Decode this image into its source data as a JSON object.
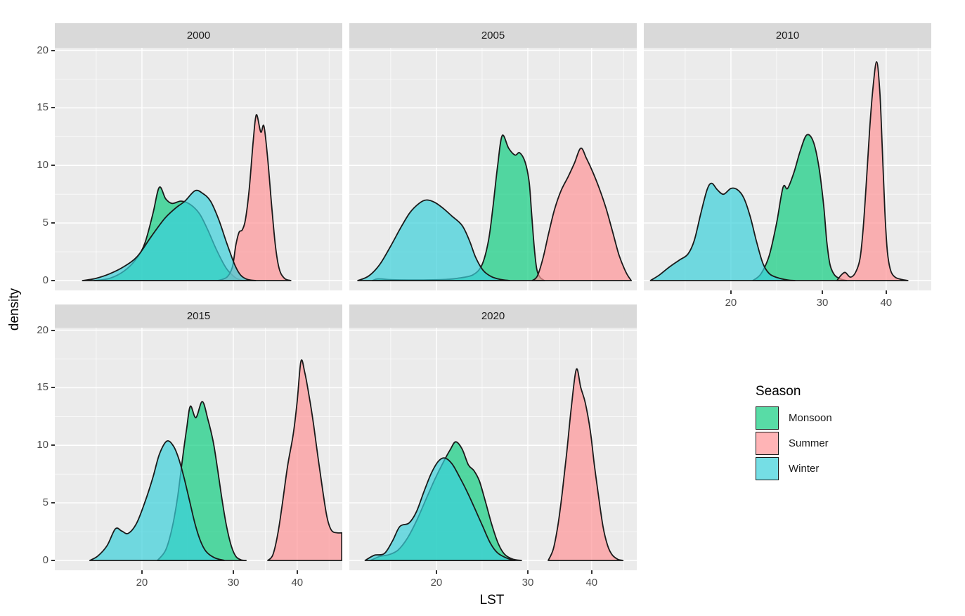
{
  "figure": {
    "background": "#FFFFFF"
  },
  "axes": {
    "x_title": "LST",
    "y_title": "density",
    "x_tick_labels": [
      "20",
      "30",
      "40"
    ],
    "y_tick_labels": [
      "0",
      "5",
      "10",
      "15",
      "20"
    ]
  },
  "legend": {
    "title": "Season",
    "items": [
      {
        "label": "Monsoon",
        "color": "#10CD80"
      },
      {
        "label": "Summer",
        "color": "#FF9497"
      },
      {
        "label": "Winter",
        "color": "#3AD0DA"
      }
    ]
  },
  "colors": {
    "panel_bg": "#EBEBEB",
    "strip_bg": "#D9D9D9",
    "grid": "#FFFFFF",
    "curve_stroke": "#1A1A1A",
    "fill_opacity": 0.7,
    "monsoon": "#10CD80",
    "summer": "#FF9497",
    "winter": "#3AD0DA"
  },
  "chart_data": {
    "type": "area",
    "subtype": "faceted-density",
    "title": "",
    "xlabel": "LST",
    "ylabel": "density",
    "facets": [
      "2000",
      "2005",
      "2010",
      "2015",
      "2020"
    ],
    "x_ticks": [
      20,
      30,
      40
    ],
    "x_minor_ticks": [
      15,
      25,
      35,
      45
    ],
    "y_ticks": [
      0,
      5,
      10,
      15,
      20
    ],
    "y_minor_ticks": [
      2.5,
      7.5,
      12.5,
      17.5
    ],
    "ylim": [
      -0.85,
      20.2
    ],
    "legend_position": "right",
    "series_names": [
      "Monsoon",
      "Summer",
      "Winter"
    ],
    "facet_series": {
      "2000": {
        "Monsoon": [
          [
            14.8,
            0
          ],
          [
            16.5,
            0.2
          ],
          [
            18,
            0.8
          ],
          [
            19.3,
            1.8
          ],
          [
            20.3,
            3.2
          ],
          [
            21.2,
            5.8
          ],
          [
            21.9,
            8.1
          ],
          [
            22.6,
            7.1
          ],
          [
            23.3,
            6.7
          ],
          [
            24.3,
            6.9
          ],
          [
            25.3,
            6.6
          ],
          [
            26.3,
            5.8
          ],
          [
            27.2,
            4.4
          ],
          [
            28.2,
            2.6
          ],
          [
            29.2,
            1.1
          ],
          [
            30.2,
            0.3
          ],
          [
            31.2,
            0.05
          ],
          [
            32,
            0
          ]
        ],
        "Summer": [
          [
            28.3,
            0
          ],
          [
            29.3,
            0.3
          ],
          [
            29.9,
            1.2
          ],
          [
            30.4,
            3.1
          ],
          [
            30.9,
            4.2
          ],
          [
            31.4,
            4.4
          ],
          [
            31.9,
            5.3
          ],
          [
            32.5,
            8
          ],
          [
            33.1,
            12
          ],
          [
            33.6,
            14.4
          ],
          [
            34.3,
            12.9
          ],
          [
            34.8,
            13.4
          ],
          [
            35.4,
            10.5
          ],
          [
            36,
            6.5
          ],
          [
            36.6,
            3
          ],
          [
            37.2,
            1
          ],
          [
            38,
            0.2
          ],
          [
            39,
            0
          ]
        ],
        "Winter": [
          [
            13.5,
            0
          ],
          [
            15,
            0.2
          ],
          [
            16.5,
            0.6
          ],
          [
            18,
            1.2
          ],
          [
            19.5,
            2.1
          ],
          [
            21,
            3.8
          ],
          [
            22.5,
            5.4
          ],
          [
            23.7,
            6.3
          ],
          [
            24.7,
            6.9
          ],
          [
            25.8,
            7.8
          ],
          [
            26.6,
            7.6
          ],
          [
            27.5,
            6.9
          ],
          [
            28.4,
            5.3
          ],
          [
            29.3,
            3.2
          ],
          [
            30.2,
            1.4
          ],
          [
            31.1,
            0.5
          ],
          [
            32.2,
            0.1
          ],
          [
            33.5,
            0
          ]
        ]
      },
      "2005": {
        "Monsoon": [
          [
            13,
            0
          ],
          [
            13.6,
            0.15
          ],
          [
            15,
            0.08
          ],
          [
            17,
            0.05
          ],
          [
            19,
            0.06
          ],
          [
            21,
            0.1
          ],
          [
            22.3,
            0.2
          ],
          [
            24,
            0.5
          ],
          [
            25,
            1.4
          ],
          [
            25.7,
            3.5
          ],
          [
            26.2,
            6.5
          ],
          [
            26.7,
            10
          ],
          [
            27.2,
            12.6
          ],
          [
            27.9,
            11.5
          ],
          [
            28.6,
            10.9
          ],
          [
            29.1,
            11.1
          ],
          [
            29.7,
            10.3
          ],
          [
            30.2,
            8.6
          ],
          [
            30.6,
            5.8
          ],
          [
            31,
            2.9
          ],
          [
            31.4,
            1
          ],
          [
            31.9,
            0.3
          ],
          [
            32.6,
            0
          ]
        ],
        "Summer": [
          [
            30.7,
            0
          ],
          [
            31.5,
            0.4
          ],
          [
            32.4,
            2
          ],
          [
            33.3,
            4.2
          ],
          [
            34.2,
            6.2
          ],
          [
            35.2,
            7.8
          ],
          [
            36.3,
            9
          ],
          [
            37.3,
            10.2
          ],
          [
            38.3,
            11.5
          ],
          [
            39.2,
            10.6
          ],
          [
            40.2,
            9.4
          ],
          [
            41.2,
            8
          ],
          [
            42.3,
            6.2
          ],
          [
            43.3,
            4.2
          ],
          [
            44.3,
            2.2
          ],
          [
            45.4,
            0.7
          ],
          [
            46.2,
            0
          ]
        ],
        "Winter": [
          [
            11.4,
            0
          ],
          [
            12.6,
            0.4
          ],
          [
            13.8,
            1.4
          ],
          [
            15,
            3
          ],
          [
            16.1,
            4.6
          ],
          [
            17.1,
            5.9
          ],
          [
            18.1,
            6.7
          ],
          [
            18.9,
            7
          ],
          [
            19.8,
            6.8
          ],
          [
            20.7,
            6.3
          ],
          [
            21.7,
            5.6
          ],
          [
            22.8,
            4.8
          ],
          [
            23.6,
            3.5
          ],
          [
            24.3,
            2
          ],
          [
            25.1,
            0.9
          ],
          [
            26,
            0.35
          ],
          [
            27,
            0.1
          ],
          [
            28,
            0
          ]
        ]
      },
      "2010": {
        "Monsoon": [
          [
            22.4,
            0
          ],
          [
            23.3,
            0.6
          ],
          [
            24.2,
            2.2
          ],
          [
            25,
            5
          ],
          [
            25.7,
            8.1
          ],
          [
            26.2,
            8
          ],
          [
            26.9,
            9.4
          ],
          [
            27.6,
            11.3
          ],
          [
            28.3,
            12.65
          ],
          [
            29,
            12.1
          ],
          [
            29.6,
            10
          ],
          [
            30.2,
            6.6
          ],
          [
            30.7,
            3.4
          ],
          [
            31.2,
            1.4
          ],
          [
            31.9,
            0.5
          ],
          [
            32.8,
            0.15
          ],
          [
            33.8,
            0
          ]
        ],
        "Summer": [
          [
            32.3,
            0
          ],
          [
            33,
            0.5
          ],
          [
            33.6,
            0.7
          ],
          [
            34.4,
            0.3
          ],
          [
            35.2,
            0.7
          ],
          [
            35.9,
            1.9
          ],
          [
            36.4,
            4.5
          ],
          [
            36.9,
            8.5
          ],
          [
            37.4,
            13
          ],
          [
            37.9,
            16.5
          ],
          [
            38.5,
            19
          ],
          [
            39,
            16.5
          ],
          [
            39.4,
            11.5
          ],
          [
            39.8,
            6
          ],
          [
            40.2,
            2.5
          ],
          [
            40.7,
            0.9
          ],
          [
            41.4,
            0.3
          ],
          [
            42.4,
            0.1
          ],
          [
            43.4,
            0
          ]
        ],
        "Winter": [
          [
            11.2,
            0
          ],
          [
            12.2,
            0.5
          ],
          [
            13.3,
            1.2
          ],
          [
            14.4,
            1.8
          ],
          [
            15.3,
            2.3
          ],
          [
            16,
            3.5
          ],
          [
            16.7,
            5.8
          ],
          [
            17.4,
            7.9
          ],
          [
            17.9,
            8.45
          ],
          [
            18.5,
            7.9
          ],
          [
            19.2,
            7.5
          ],
          [
            20,
            8
          ],
          [
            20.7,
            7.9
          ],
          [
            21.4,
            7.2
          ],
          [
            22.1,
            5.6
          ],
          [
            22.8,
            3.4
          ],
          [
            23.5,
            1.5
          ],
          [
            24.2,
            0.6
          ],
          [
            25.1,
            0.25
          ],
          [
            26.2,
            0.05
          ],
          [
            27,
            0
          ]
        ]
      },
      "2015": {
        "Monsoon": [
          [
            21.7,
            0
          ],
          [
            22.6,
            0.9
          ],
          [
            23.3,
            2.8
          ],
          [
            23.9,
            5.5
          ],
          [
            24.4,
            8.6
          ],
          [
            24.9,
            11.5
          ],
          [
            25.3,
            13.4
          ],
          [
            25.9,
            12.4
          ],
          [
            26.6,
            13.8
          ],
          [
            27.2,
            12.3
          ],
          [
            27.8,
            10.3
          ],
          [
            28.3,
            7.8
          ],
          [
            28.8,
            5.1
          ],
          [
            29.3,
            2.8
          ],
          [
            29.8,
            1.2
          ],
          [
            30.4,
            0.35
          ],
          [
            31.2,
            0.05
          ],
          [
            32,
            0
          ]
        ],
        "Summer": [
          [
            35.4,
            0
          ],
          [
            36.2,
            0.5
          ],
          [
            37,
            2.4
          ],
          [
            37.7,
            5
          ],
          [
            38.5,
            8.2
          ],
          [
            39.4,
            11
          ],
          [
            40,
            13.8
          ],
          [
            40.6,
            17.3
          ],
          [
            41.2,
            16.3
          ],
          [
            41.9,
            14.2
          ],
          [
            42.6,
            11.7
          ],
          [
            43.3,
            8.8
          ],
          [
            44,
            6.1
          ],
          [
            44.7,
            3.7
          ],
          [
            45.4,
            2.6
          ],
          [
            46.3,
            2.4
          ],
          [
            47,
            2.4
          ]
        ],
        "Winter": [
          [
            14.3,
            0
          ],
          [
            15.2,
            0.4
          ],
          [
            16.2,
            1.3
          ],
          [
            17.1,
            2.75
          ],
          [
            17.8,
            2.55
          ],
          [
            18.5,
            2.35
          ],
          [
            19.4,
            3.2
          ],
          [
            20.3,
            5
          ],
          [
            21.2,
            7.2
          ],
          [
            21.9,
            9.2
          ],
          [
            22.7,
            10.35
          ],
          [
            23.4,
            10
          ],
          [
            24,
            8.9
          ],
          [
            24.6,
            7.2
          ],
          [
            25.2,
            5.2
          ],
          [
            25.8,
            3.2
          ],
          [
            26.4,
            1.7
          ],
          [
            27,
            0.8
          ],
          [
            27.9,
            0.25
          ],
          [
            29,
            0
          ]
        ]
      },
      "2020": {
        "Monsoon": [
          [
            12.8,
            0
          ],
          [
            13.8,
            0.35
          ],
          [
            14.8,
            0.5
          ],
          [
            15.8,
            0.9
          ],
          [
            16.8,
            1.9
          ],
          [
            17.8,
            3.4
          ],
          [
            18.8,
            5.2
          ],
          [
            19.8,
            7
          ],
          [
            20.8,
            8.6
          ],
          [
            21.5,
            9.6
          ],
          [
            22.1,
            10.3
          ],
          [
            22.8,
            9.7
          ],
          [
            23.5,
            8.3
          ],
          [
            24.1,
            7.8
          ],
          [
            24.7,
            6.9
          ],
          [
            25.4,
            5
          ],
          [
            26.1,
            3
          ],
          [
            26.8,
            1.4
          ],
          [
            27.5,
            0.5
          ],
          [
            28.4,
            0.1
          ],
          [
            29.3,
            0
          ]
        ],
        "Summer": [
          [
            33.2,
            0
          ],
          [
            34,
            1
          ],
          [
            34.7,
            3
          ],
          [
            35.4,
            5.9
          ],
          [
            36.1,
            9.4
          ],
          [
            36.8,
            13.2
          ],
          [
            37.6,
            16.6
          ],
          [
            38.3,
            15
          ],
          [
            39,
            13.7
          ],
          [
            39.8,
            11.2
          ],
          [
            40.4,
            8.4
          ],
          [
            41.1,
            5.5
          ],
          [
            41.8,
            2.9
          ],
          [
            42.5,
            1.3
          ],
          [
            43.2,
            0.5
          ],
          [
            44.1,
            0.1
          ],
          [
            44.9,
            0
          ]
        ],
        "Winter": [
          [
            12.2,
            0
          ],
          [
            13.2,
            0.45
          ],
          [
            14.3,
            0.6
          ],
          [
            15.2,
            1.7
          ],
          [
            16,
            2.95
          ],
          [
            17,
            3.25
          ],
          [
            17.8,
            4.2
          ],
          [
            18.6,
            5.9
          ],
          [
            19.4,
            7.5
          ],
          [
            20.2,
            8.6
          ],
          [
            20.9,
            8.9
          ],
          [
            21.7,
            8.4
          ],
          [
            22.5,
            7.3
          ],
          [
            23.4,
            5.9
          ],
          [
            24.2,
            4.5
          ],
          [
            25.1,
            2.9
          ],
          [
            25.9,
            1.5
          ],
          [
            26.7,
            0.65
          ],
          [
            27.7,
            0.2
          ],
          [
            28.6,
            0
          ]
        ]
      }
    }
  }
}
